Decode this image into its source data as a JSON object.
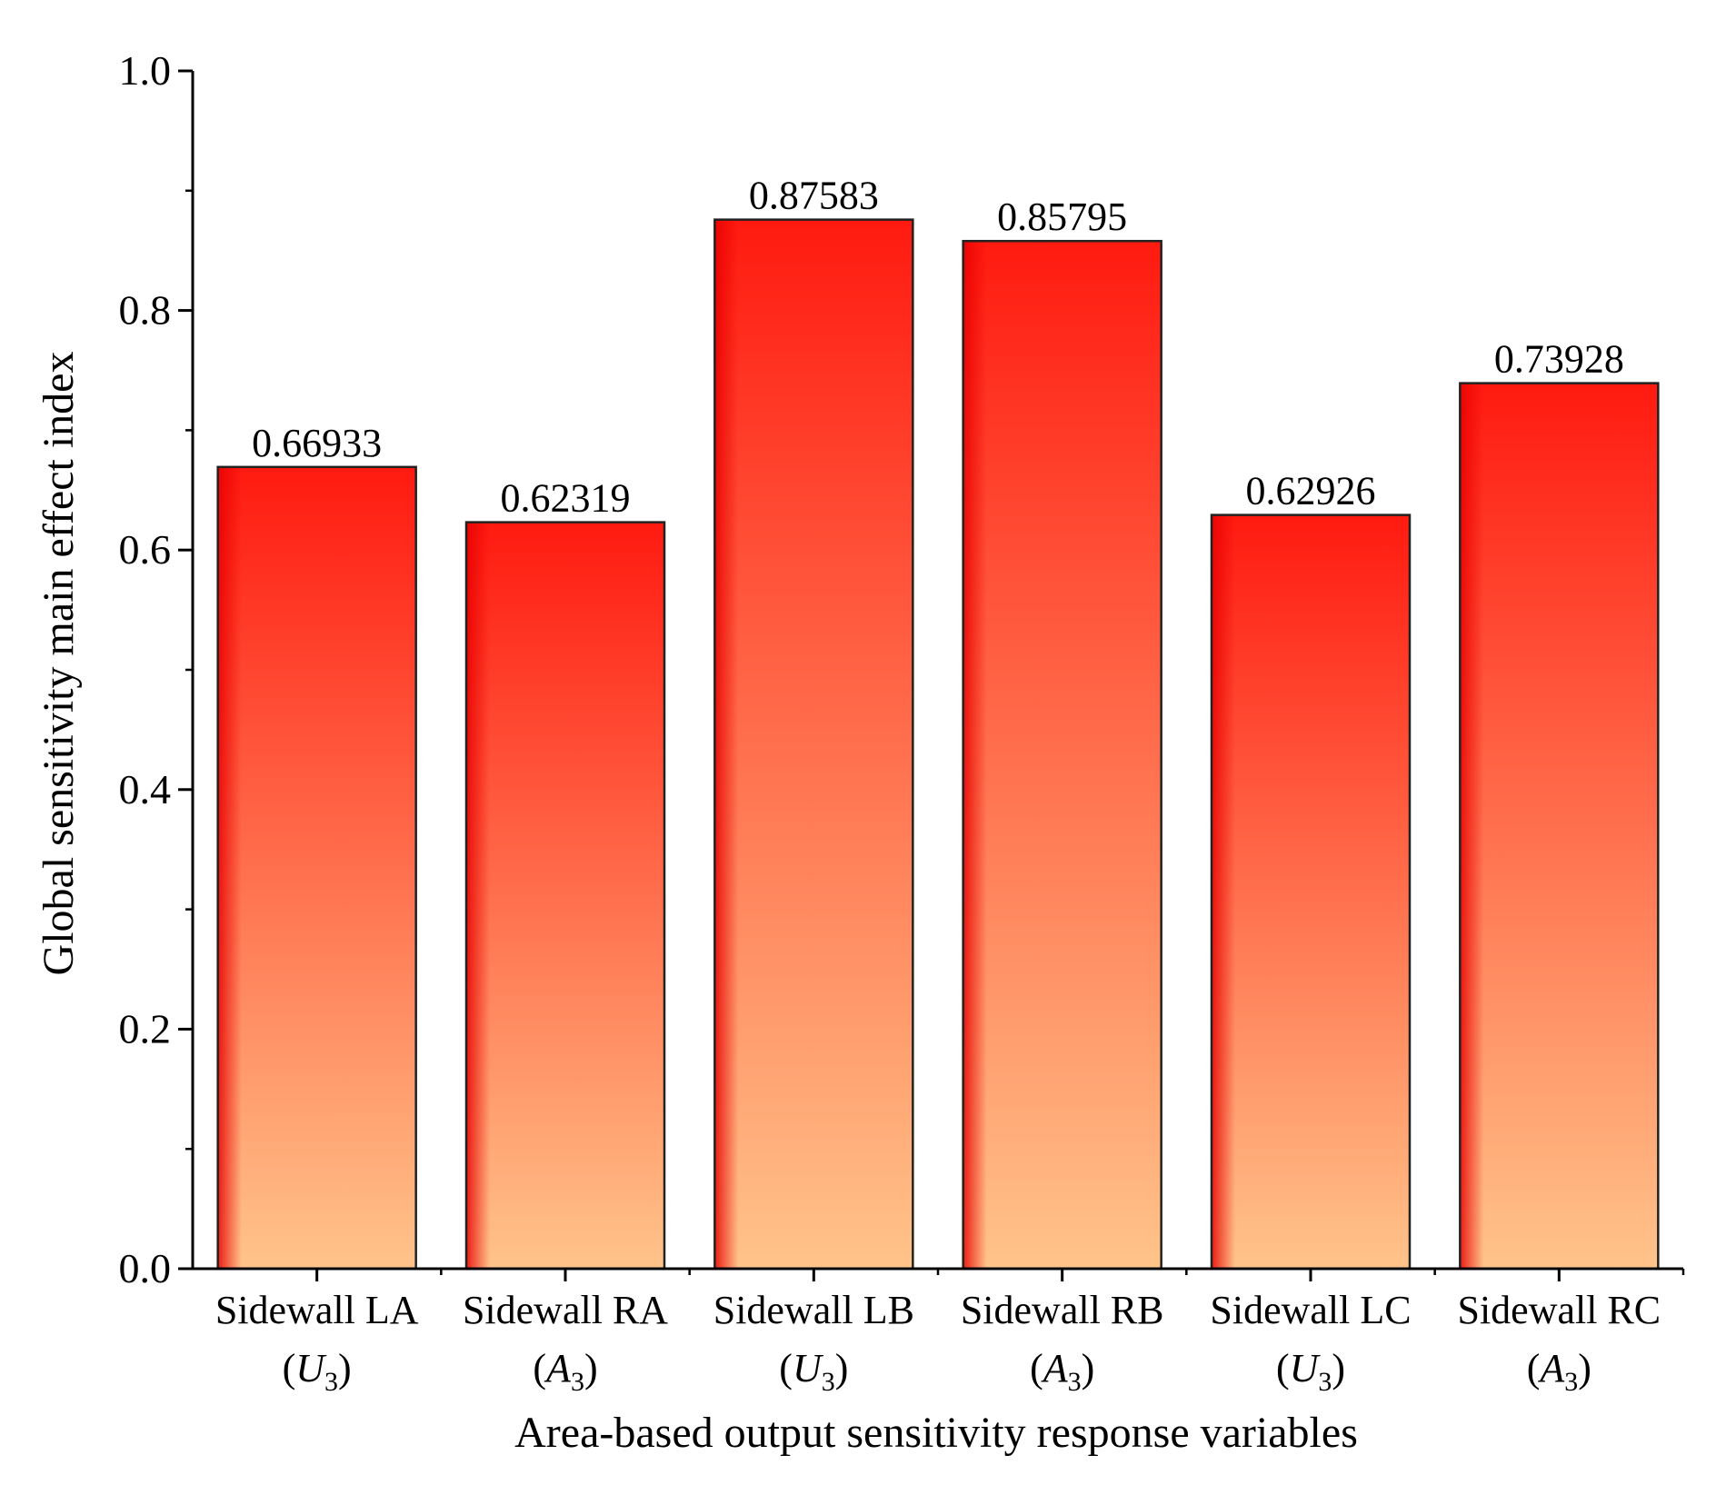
{
  "chart_data": {
    "type": "bar",
    "xlabel": "Area-based output sensitivity response variables",
    "ylabel": "Global sensitivity main effect index",
    "ylim": [
      0,
      1.0
    ],
    "yticks": [
      "0.0",
      "0.2",
      "0.4",
      "0.6",
      "0.8",
      "1.0"
    ],
    "grid": false,
    "legend": "none",
    "categories": [
      {
        "name": "Sidewall LA",
        "var": "U",
        "sub": "3"
      },
      {
        "name": "Sidewall RA",
        "var": "A",
        "sub": "3"
      },
      {
        "name": "Sidewall LB",
        "var": "U",
        "sub": "3"
      },
      {
        "name": "Sidewall RB",
        "var": "A",
        "sub": "3"
      },
      {
        "name": "Sidewall LC",
        "var": "U",
        "sub": "3"
      },
      {
        "name": "Sidewall RC",
        "var": "A",
        "sub": "3"
      }
    ],
    "values": [
      0.66933,
      0.62319,
      0.87583,
      0.85795,
      0.62926,
      0.73928
    ],
    "data_labels": [
      "0.66933",
      "0.62319",
      "0.87583",
      "0.85795",
      "0.62926",
      "0.73928"
    ],
    "colors": {
      "bar_top": "#ff1a10",
      "bar_bottom": "#ffc48a",
      "bar_left_edge": "#e80000",
      "bar_outline": "#222222",
      "axis": "#000000"
    }
  }
}
